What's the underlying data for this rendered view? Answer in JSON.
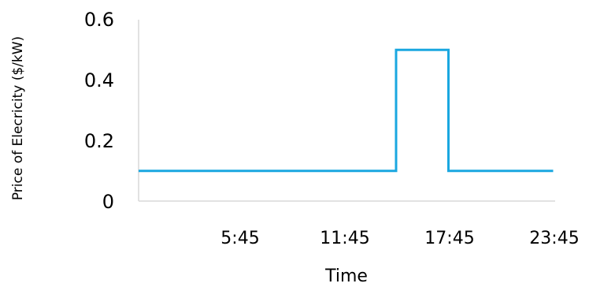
{
  "chart_data": {
    "type": "line",
    "xlabel": "Time",
    "ylabel": "Price of Elecricity ($/kW)",
    "ylim": [
      0,
      0.6
    ],
    "y_ticks": [
      "0",
      "0.2",
      "0.4",
      "0.6"
    ],
    "x_ticks": [
      "5:45",
      "11:45",
      "17:45",
      "23:45"
    ],
    "grid": false,
    "legend": "none",
    "line_color": "#1aa7e0",
    "axis_color": "#d9d9d9",
    "series": [
      {
        "x": [
          "0:00",
          "14:45",
          "14:45",
          "17:45",
          "17:45",
          "23:45"
        ],
        "values": [
          0.1,
          0.1,
          0.5,
          0.5,
          0.1,
          0.1
        ]
      }
    ]
  }
}
